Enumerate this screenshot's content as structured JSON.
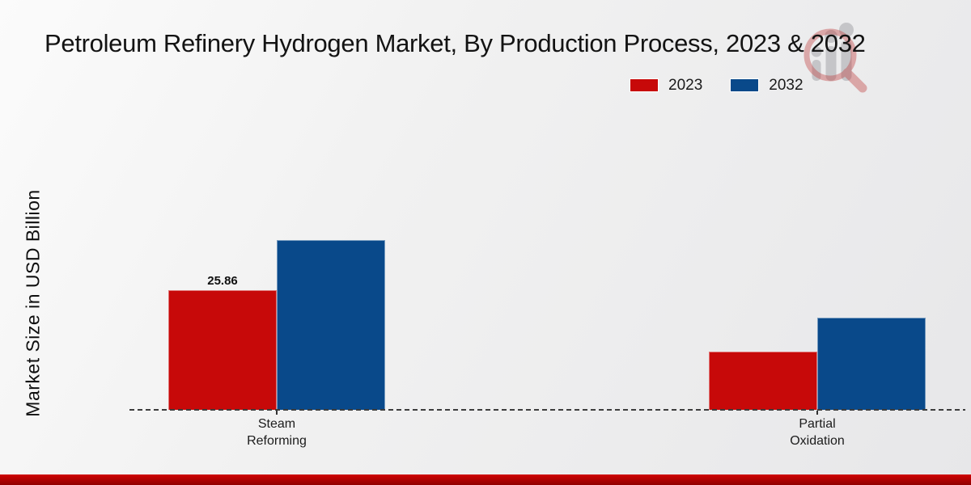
{
  "header": {
    "title": "Petroleum Refinery Hydrogen Market, By Production Process, 2023 & 2032"
  },
  "legend": {
    "items": [
      {
        "label": "2023",
        "color": "#c70909"
      },
      {
        "label": "2032",
        "color": "#09498a"
      }
    ]
  },
  "chart_data": {
    "type": "bar",
    "title": "Petroleum Refinery Hydrogen Market, By Production Process, 2023 & 2032",
    "ylabel": "Market Size in USD Billion",
    "xlabel": "",
    "categories": [
      "Steam Reforming",
      "Partial Oxidation"
    ],
    "series": [
      {
        "name": "2023",
        "color": "#c70909",
        "values": [
          25.86,
          12.6
        ]
      },
      {
        "name": "2032",
        "color": "#09498a",
        "values": [
          36.7,
          19.9
        ]
      }
    ],
    "annotations": [
      {
        "series": "2023",
        "category": "Steam Reforming",
        "text": "25.86"
      }
    ],
    "legend_position": "top-right",
    "grid": false,
    "baseline_style": "dashed",
    "ylim": [
      0,
      40
    ]
  },
  "colors": {
    "series_2023": "#c70909",
    "series_2032": "#09498a",
    "footer_accent": "#c00000",
    "baseline": "#3d3d3d"
  },
  "icons": {
    "watermark": "magnifier-bar-chart-logo"
  }
}
